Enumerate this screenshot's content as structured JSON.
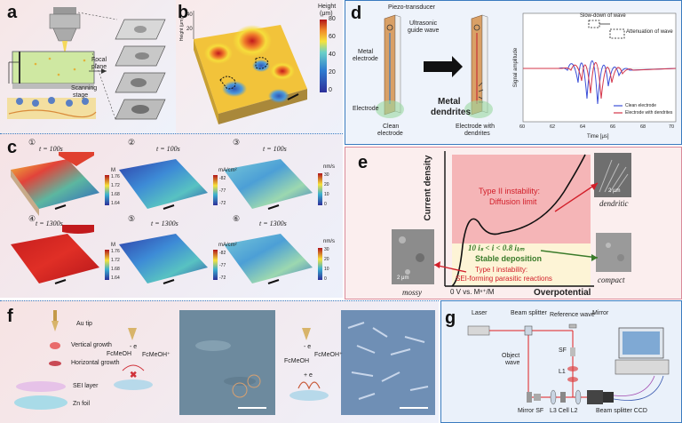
{
  "labels": {
    "a": "a",
    "b": "b",
    "c": "c",
    "d": "d",
    "e": "e",
    "f": "f",
    "g": "g"
  },
  "panel_a": {
    "focal": "Focal\nplane",
    "focal1": "Focal",
    "focal2": "plane",
    "stage1": "Scanning",
    "stage2": "stage"
  },
  "panel_b": {
    "title": "Height",
    "unit": "(μm)",
    "ticks": [
      "80",
      "60",
      "40",
      "20",
      "0"
    ],
    "yaxis": "Height (μm)",
    "yticks": [
      "40",
      "20"
    ]
  },
  "panel_c": {
    "times": [
      "t = 100s",
      "t = 100s",
      "t = 100s",
      "t = 1300s",
      "t = 1300s",
      "t = 1300s"
    ],
    "nums": [
      "①",
      "②",
      "③",
      "④",
      "⑤",
      "⑥"
    ],
    "units": [
      "M",
      "mA/cm²",
      "nm/s",
      "M",
      "mA/cm²",
      "nm/s"
    ],
    "ticks1": [
      "1.76",
      "1.72",
      "1.68",
      "1.64"
    ],
    "ticks2": [
      "-82",
      "-77",
      "-72"
    ],
    "ticks3": [
      "30",
      "20",
      "10",
      "0"
    ]
  },
  "panel_d": {
    "piezo": "Piezo-transducer",
    "guide1": "Ultrasonic",
    "guide2": "guide wave",
    "metal1": "Metal",
    "metal2": "electrode",
    "electrode": "Electrode",
    "dend1": "Metal",
    "dend2": "dendrites",
    "clean1": "Clean",
    "clean2": "electrode",
    "withd1": "Electrode with",
    "withd2": "dendrites",
    "slow": "Slow-down of wave",
    "atten": "Attenuation of wave",
    "xlabel": "Time [μs]",
    "ylabel": "Signal amplitude",
    "xticks": [
      "60",
      "62",
      "64",
      "66",
      "68",
      "70"
    ],
    "legend": [
      "Clean electrode",
      "Electrode with dendrites"
    ]
  },
  "panel_e": {
    "ylabel": "Current density",
    "xlabel": "Overpotential",
    "origin": "0 V vs. Mⁿ⁺/M",
    "type2a": "Type II instability:",
    "type2b": "Diffusion limit",
    "stable1": "10 iₛ < i < 0.8 iₗᵢₘ",
    "stable2": "Stable deposition",
    "type1a": "Type I instability:",
    "type1b": "SEI-forming parasitic reactions",
    "mossy": "mossy",
    "dendritic": "dendritic",
    "compact": "compact",
    "scale": "2 μm"
  },
  "panel_f": {
    "tip": "Au tip",
    "vert": "Vertical growth",
    "horiz": "Horizontal growth",
    "sei": "SEI layer",
    "zn": "Zn foil",
    "fc": "FcMeOH",
    "fcp": "FcMeOH⁺",
    "e": "- e",
    "pe": "+ e"
  },
  "panel_g": {
    "laser": "Laser",
    "bs": "Beam splitter",
    "ref": "Reference wave",
    "mirror": "Mirror",
    "obj1": "Object",
    "obj2": "wave",
    "sf": "SF",
    "l1": "L1",
    "msf": "Mirror SF",
    "l3": "L3 Cell L2",
    "bsccd": "Beam splitter CCD"
  },
  "colors": {
    "heat_red": "#d7261e",
    "heat_yellow": "#f7e03a",
    "heat_blue": "#2d4ea8",
    "border_blue": "#3a7bbf",
    "pink": "#f6b8bb"
  }
}
